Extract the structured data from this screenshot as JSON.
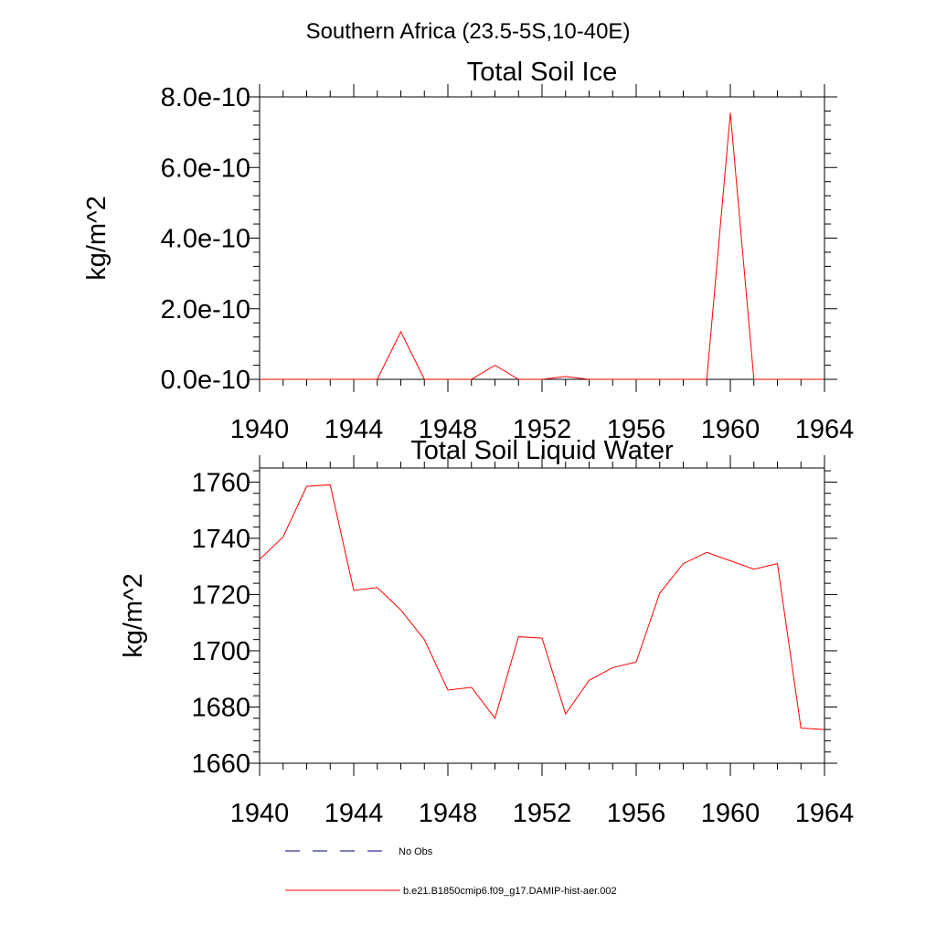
{
  "figure_title": "Southern Africa (23.5-5S,10-40E)",
  "colors": {
    "model_line": "#ff0000",
    "obs_line": "#000080",
    "axis": "#000000"
  },
  "legend": [
    {
      "label": "No Obs",
      "style": "dashed",
      "color": "#000080"
    },
    {
      "label": "b.e21.B1850cmip6.f09_g17.DAMIP-hist-aer.002",
      "style": "solid",
      "color": "#ff0000"
    }
  ],
  "chart_data": [
    {
      "type": "line",
      "title": "Total Soil Ice",
      "xlabel": "",
      "ylabel": "kg/m^2",
      "xlim": [
        1940,
        1964
      ],
      "ylim": [
        0,
        8e-10
      ],
      "xticks": [
        1940,
        1944,
        1948,
        1952,
        1956,
        1960,
        1964
      ],
      "xtick_labels": [
        "1940",
        "1944",
        "1948",
        "1952",
        "1956",
        "1960",
        "1964"
      ],
      "yticks": [
        0,
        2e-10,
        4e-10,
        6e-10,
        8e-10
      ],
      "ytick_labels": [
        "0.0e-10",
        "2.0e-10",
        "4.0e-10",
        "6.0e-10",
        "8.0e-10"
      ],
      "grid": false,
      "series": [
        {
          "name": "b.e21.B1850cmip6.f09_g17.DAMIP-hist-aer.002",
          "x": [
            1940,
            1941,
            1942,
            1943,
            1944,
            1945,
            1946,
            1947,
            1948,
            1949,
            1950,
            1951,
            1952,
            1953,
            1954,
            1955,
            1956,
            1957,
            1958,
            1959,
            1960,
            1961,
            1962,
            1963,
            1964
          ],
          "y": [
            0,
            0,
            0,
            0,
            0,
            0,
            1.35e-10,
            0,
            0,
            0,
            4e-11,
            0,
            0,
            8e-12,
            0,
            0,
            0,
            0,
            0,
            0,
            7.55e-10,
            0,
            0,
            0,
            0
          ]
        }
      ]
    },
    {
      "type": "line",
      "title": "Total Soil Liquid Water",
      "xlabel": "",
      "ylabel": "kg/m^2",
      "xlim": [
        1940,
        1964
      ],
      "ylim": [
        1660,
        1765
      ],
      "xticks": [
        1940,
        1944,
        1948,
        1952,
        1956,
        1960,
        1964
      ],
      "xtick_labels": [
        "1940",
        "1944",
        "1948",
        "1952",
        "1956",
        "1960",
        "1964"
      ],
      "yticks": [
        1660,
        1680,
        1700,
        1720,
        1740,
        1760
      ],
      "ytick_labels": [
        "1660",
        "1680",
        "1700",
        "1720",
        "1740",
        "1760"
      ],
      "grid": false,
      "series": [
        {
          "name": "b.e21.B1850cmip6.f09_g17.DAMIP-hist-aer.002",
          "x": [
            1940,
            1941,
            1942,
            1943,
            1944,
            1945,
            1946,
            1947,
            1948,
            1949,
            1950,
            1951,
            1952,
            1953,
            1954,
            1955,
            1956,
            1957,
            1958,
            1959,
            1960,
            1961,
            1962,
            1963,
            1964
          ],
          "y": [
            1732.5,
            1740.5,
            1758.5,
            1759,
            1721.5,
            1722.5,
            1714.5,
            1704,
            1686,
            1687,
            1676,
            1705,
            1704.5,
            1677.5,
            1689.5,
            1694,
            1696,
            1720.5,
            1731,
            1735,
            1732,
            1729,
            1731,
            1672.5,
            1672
          ]
        }
      ]
    }
  ]
}
